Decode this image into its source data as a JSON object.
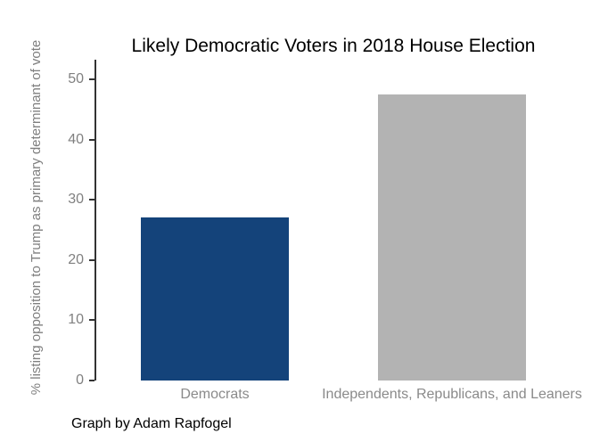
{
  "caption": "Graph by Adam Rapfogel",
  "colors": {
    "democrat_bar": "#14437a",
    "independent_bar": "#b3b3b3",
    "axis_line": "#333333",
    "axis_tick_text": "#808080",
    "y_title_text": "#7f7f7f",
    "title_text": "#000000",
    "background": "#ffffff"
  },
  "chart_data": {
    "type": "bar",
    "title": "Likely Democratic Voters in 2018 House Election",
    "ylabel": "% listing opposition to Trump as primary determinant of vote",
    "xlabel": "",
    "categories": [
      "Democrats",
      "Independents, Republicans, and Leaners"
    ],
    "values": [
      27,
      47.5
    ],
    "bar_colors": [
      "#14437a",
      "#b3b3b3"
    ],
    "yticks": [
      0,
      10,
      20,
      30,
      40,
      50
    ],
    "ylim": [
      0,
      52
    ],
    "grid": "off",
    "legend": "none",
    "annotations": [
      "Graph by Adam Rapfogel"
    ]
  }
}
